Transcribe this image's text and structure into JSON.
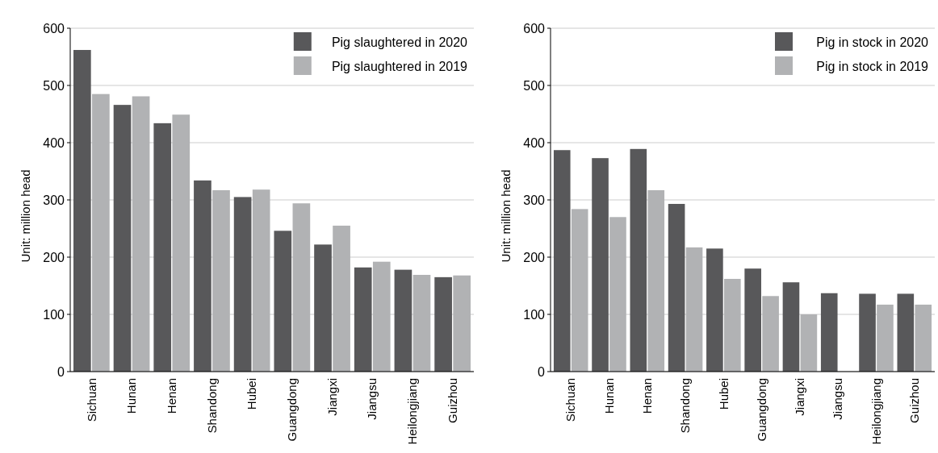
{
  "chart_data": [
    {
      "type": "bar",
      "ylabel": "Unit: million head",
      "categories": [
        "Sichuan",
        "Hunan",
        "Henan",
        "Shandong",
        "Hubei",
        "Guangdong",
        "Jiangxi",
        "Jiangsu",
        "Heilongjiang",
        "Guizhou"
      ],
      "series": [
        {
          "name": "Pig slaughtered in 2020",
          "color": "#58585a",
          "values": [
            562,
            466,
            434,
            334,
            305,
            246,
            222,
            182,
            178,
            165
          ]
        },
        {
          "name": "Pig slaughtered in 2019",
          "color": "#b1b2b4",
          "values": [
            485,
            481,
            449,
            317,
            318,
            294,
            255,
            192,
            169,
            168
          ]
        }
      ],
      "ylim": [
        0,
        600
      ],
      "yticks": [
        0,
        100,
        200,
        300,
        400,
        500,
        600
      ],
      "grid": "y",
      "legend": "top right"
    },
    {
      "type": "bar",
      "ylabel": "Unit: million head",
      "categories": [
        "Sichuan",
        "Hunan",
        "Henan",
        "Shandong",
        "Hubei",
        "Guangdong",
        "Jiangxi",
        "Jiangsu",
        "Heilongjiang",
        "Guizhou"
      ],
      "series": [
        {
          "name": "Pig in stock in 2020",
          "color": "#58585a",
          "values": [
            387,
            373,
            389,
            293,
            215,
            180,
            156,
            137,
            136,
            136
          ]
        },
        {
          "name": "Pig in stock in 2019",
          "color": "#b1b2b4",
          "values": [
            284,
            270,
            317,
            217,
            162,
            132,
            100,
            null,
            117,
            117
          ]
        }
      ],
      "ylim": [
        0,
        600
      ],
      "yticks": [
        0,
        100,
        200,
        300,
        400,
        500,
        600
      ],
      "grid": "y",
      "legend": "top right"
    }
  ]
}
